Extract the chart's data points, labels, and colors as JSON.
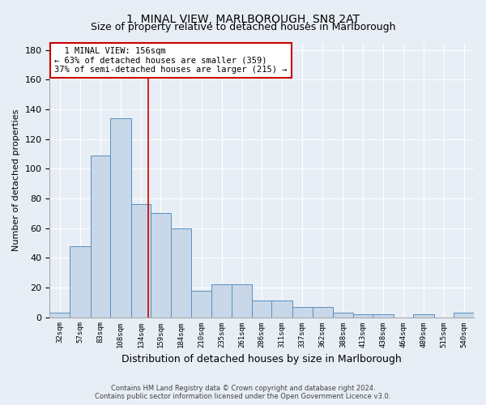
{
  "title": "1, MINAL VIEW, MARLBOROUGH, SN8 2AT",
  "subtitle": "Size of property relative to detached houses in Marlborough",
  "xlabel": "Distribution of detached houses by size in Marlborough",
  "ylabel": "Number of detached properties",
  "bar_edges": [
    32,
    57,
    83,
    108,
    134,
    159,
    184,
    210,
    235,
    261,
    286,
    311,
    337,
    362,
    388,
    413,
    438,
    464,
    489,
    515,
    540
  ],
  "bar_heights": [
    3,
    48,
    109,
    134,
    76,
    70,
    60,
    18,
    22,
    22,
    11,
    11,
    7,
    7,
    3,
    2,
    2,
    0,
    2,
    0,
    3
  ],
  "bar_color": "#c8d8e8",
  "bar_edgecolor": "#5a8fc0",
  "property_line_x": 156,
  "property_line_color": "#cc0000",
  "annotation_text": "  1 MINAL VIEW: 156sqm\n← 63% of detached houses are smaller (359)\n37% of semi-detached houses are larger (215) →",
  "annotation_box_color": "#ffffff",
  "annotation_box_edgecolor": "#cc0000",
  "ylim": [
    0,
    185
  ],
  "yticks": [
    0,
    20,
    40,
    60,
    80,
    100,
    120,
    140,
    160,
    180
  ],
  "background_color": "#e8eef5",
  "plot_bg_color": "#e8eef5",
  "footer_line1": "Contains HM Land Registry data © Crown copyright and database right 2024.",
  "footer_line2": "Contains public sector information licensed under the Open Government Licence v3.0.",
  "tick_labels": [
    "32sqm",
    "57sqm",
    "83sqm",
    "108sqm",
    "134sqm",
    "159sqm",
    "184sqm",
    "210sqm",
    "235sqm",
    "261sqm",
    "286sqm",
    "311sqm",
    "337sqm",
    "362sqm",
    "388sqm",
    "413sqm",
    "438sqm",
    "464sqm",
    "489sqm",
    "515sqm",
    "540sqm"
  ],
  "title_fontsize": 10,
  "subtitle_fontsize": 9,
  "xlabel_fontsize": 9,
  "ylabel_fontsize": 8
}
